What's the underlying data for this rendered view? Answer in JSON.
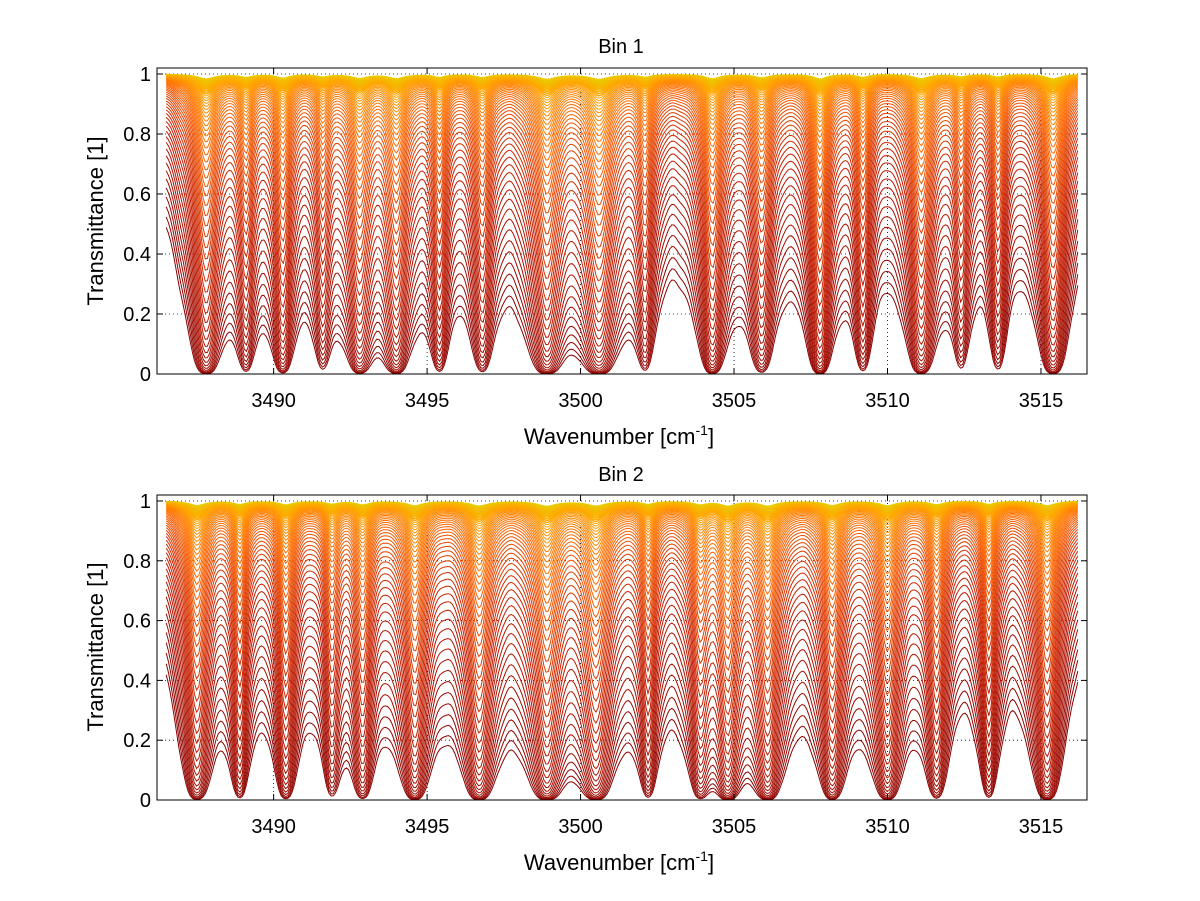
{
  "figure": {
    "background": "#ffffff",
    "line_colors": [
      "#8b0000",
      "#c81e00",
      "#ff6600",
      "#ffa500",
      "#e8d000"
    ]
  },
  "chart_data": [
    {
      "type": "line",
      "title": "Bin 1",
      "xlabel": "Wavenumber [cm",
      "xlabel_sup": "-1",
      "xlabel_end": "]",
      "ylabel": "Transmittance [1]",
      "xlim": [
        3486.2,
        3516.5
      ],
      "ylim": [
        0,
        1.02
      ],
      "xticks": [
        3490,
        3495,
        3500,
        3505,
        3510,
        3515
      ],
      "xtick_labels": [
        "3490",
        "3495",
        "3500",
        "3505",
        "3510",
        "3515"
      ],
      "yticks": [
        0,
        0.2,
        0.4,
        0.6,
        0.8,
        1
      ],
      "ytick_labels": [
        "0",
        "0.2",
        "0.4",
        "0.6",
        "0.8",
        "1"
      ],
      "grid": true,
      "legend": "none",
      "series_count": 60,
      "series_description": "transmittance spectra for increasing absorber amount, colored from orange (near 1) to dark red (near 0)",
      "absorption_lines": [
        {
          "x": 3487.8,
          "depth": 0.9,
          "width": 0.32
        },
        {
          "x": 3489.1,
          "depth": 0.55,
          "width": 0.22
        },
        {
          "x": 3490.3,
          "depth": 0.7,
          "width": 0.25
        },
        {
          "x": 3491.6,
          "depth": 0.45,
          "width": 0.22
        },
        {
          "x": 3492.8,
          "depth": 0.75,
          "width": 0.3
        },
        {
          "x": 3494.0,
          "depth": 0.8,
          "width": 0.3
        },
        {
          "x": 3495.4,
          "depth": 0.55,
          "width": 0.22
        },
        {
          "x": 3496.8,
          "depth": 0.6,
          "width": 0.25
        },
        {
          "x": 3498.9,
          "depth": 0.92,
          "width": 0.35
        },
        {
          "x": 3500.6,
          "depth": 0.95,
          "width": 0.38
        },
        {
          "x": 3502.1,
          "depth": 0.5,
          "width": 0.22
        },
        {
          "x": 3504.3,
          "depth": 0.85,
          "width": 0.28
        },
        {
          "x": 3505.9,
          "depth": 0.65,
          "width": 0.28
        },
        {
          "x": 3507.8,
          "depth": 0.9,
          "width": 0.25
        },
        {
          "x": 3509.2,
          "depth": 0.55,
          "width": 0.22
        },
        {
          "x": 3511.1,
          "depth": 0.85,
          "width": 0.3
        },
        {
          "x": 3512.4,
          "depth": 0.45,
          "width": 0.22
        },
        {
          "x": 3513.6,
          "depth": 0.5,
          "width": 0.22
        },
        {
          "x": 3515.4,
          "depth": 0.9,
          "width": 0.3
        }
      ]
    },
    {
      "type": "line",
      "title": "Bin 2",
      "xlabel": "Wavenumber [cm",
      "xlabel_sup": "-1",
      "xlabel_end": "]",
      "ylabel": "Transmittance [1]",
      "xlim": [
        3486.2,
        3516.5
      ],
      "ylim": [
        0,
        1.02
      ],
      "xticks": [
        3490,
        3495,
        3500,
        3505,
        3510,
        3515
      ],
      "xtick_labels": [
        "3490",
        "3495",
        "3500",
        "3505",
        "3510",
        "3515"
      ],
      "yticks": [
        0,
        0.2,
        0.4,
        0.6,
        0.8,
        1
      ],
      "ytick_labels": [
        "0",
        "0.2",
        "0.4",
        "0.6",
        "0.8",
        "1"
      ],
      "grid": true,
      "legend": "none",
      "series_count": 60,
      "series_description": "transmittance spectra for increasing absorber amount, colored from orange (near 1) to dark red (near 0)",
      "absorption_lines": [
        {
          "x": 3487.5,
          "depth": 0.85,
          "width": 0.3
        },
        {
          "x": 3488.9,
          "depth": 0.6,
          "width": 0.22
        },
        {
          "x": 3490.4,
          "depth": 0.7,
          "width": 0.25
        },
        {
          "x": 3491.9,
          "depth": 0.5,
          "width": 0.22
        },
        {
          "x": 3492.9,
          "depth": 0.65,
          "width": 0.25
        },
        {
          "x": 3494.6,
          "depth": 0.85,
          "width": 0.3
        },
        {
          "x": 3496.7,
          "depth": 0.9,
          "width": 0.32
        },
        {
          "x": 3498.9,
          "depth": 0.92,
          "width": 0.35
        },
        {
          "x": 3500.5,
          "depth": 0.88,
          "width": 0.35
        },
        {
          "x": 3502.2,
          "depth": 0.55,
          "width": 0.22
        },
        {
          "x": 3503.9,
          "depth": 0.6,
          "width": 0.25
        },
        {
          "x": 3504.8,
          "depth": 0.85,
          "width": 0.28
        },
        {
          "x": 3506.1,
          "depth": 0.9,
          "width": 0.3
        },
        {
          "x": 3508.2,
          "depth": 0.8,
          "width": 0.28
        },
        {
          "x": 3510.0,
          "depth": 0.85,
          "width": 0.3
        },
        {
          "x": 3511.6,
          "depth": 0.65,
          "width": 0.25
        },
        {
          "x": 3513.3,
          "depth": 0.6,
          "width": 0.22
        },
        {
          "x": 3515.2,
          "depth": 0.9,
          "width": 0.3
        }
      ]
    }
  ]
}
